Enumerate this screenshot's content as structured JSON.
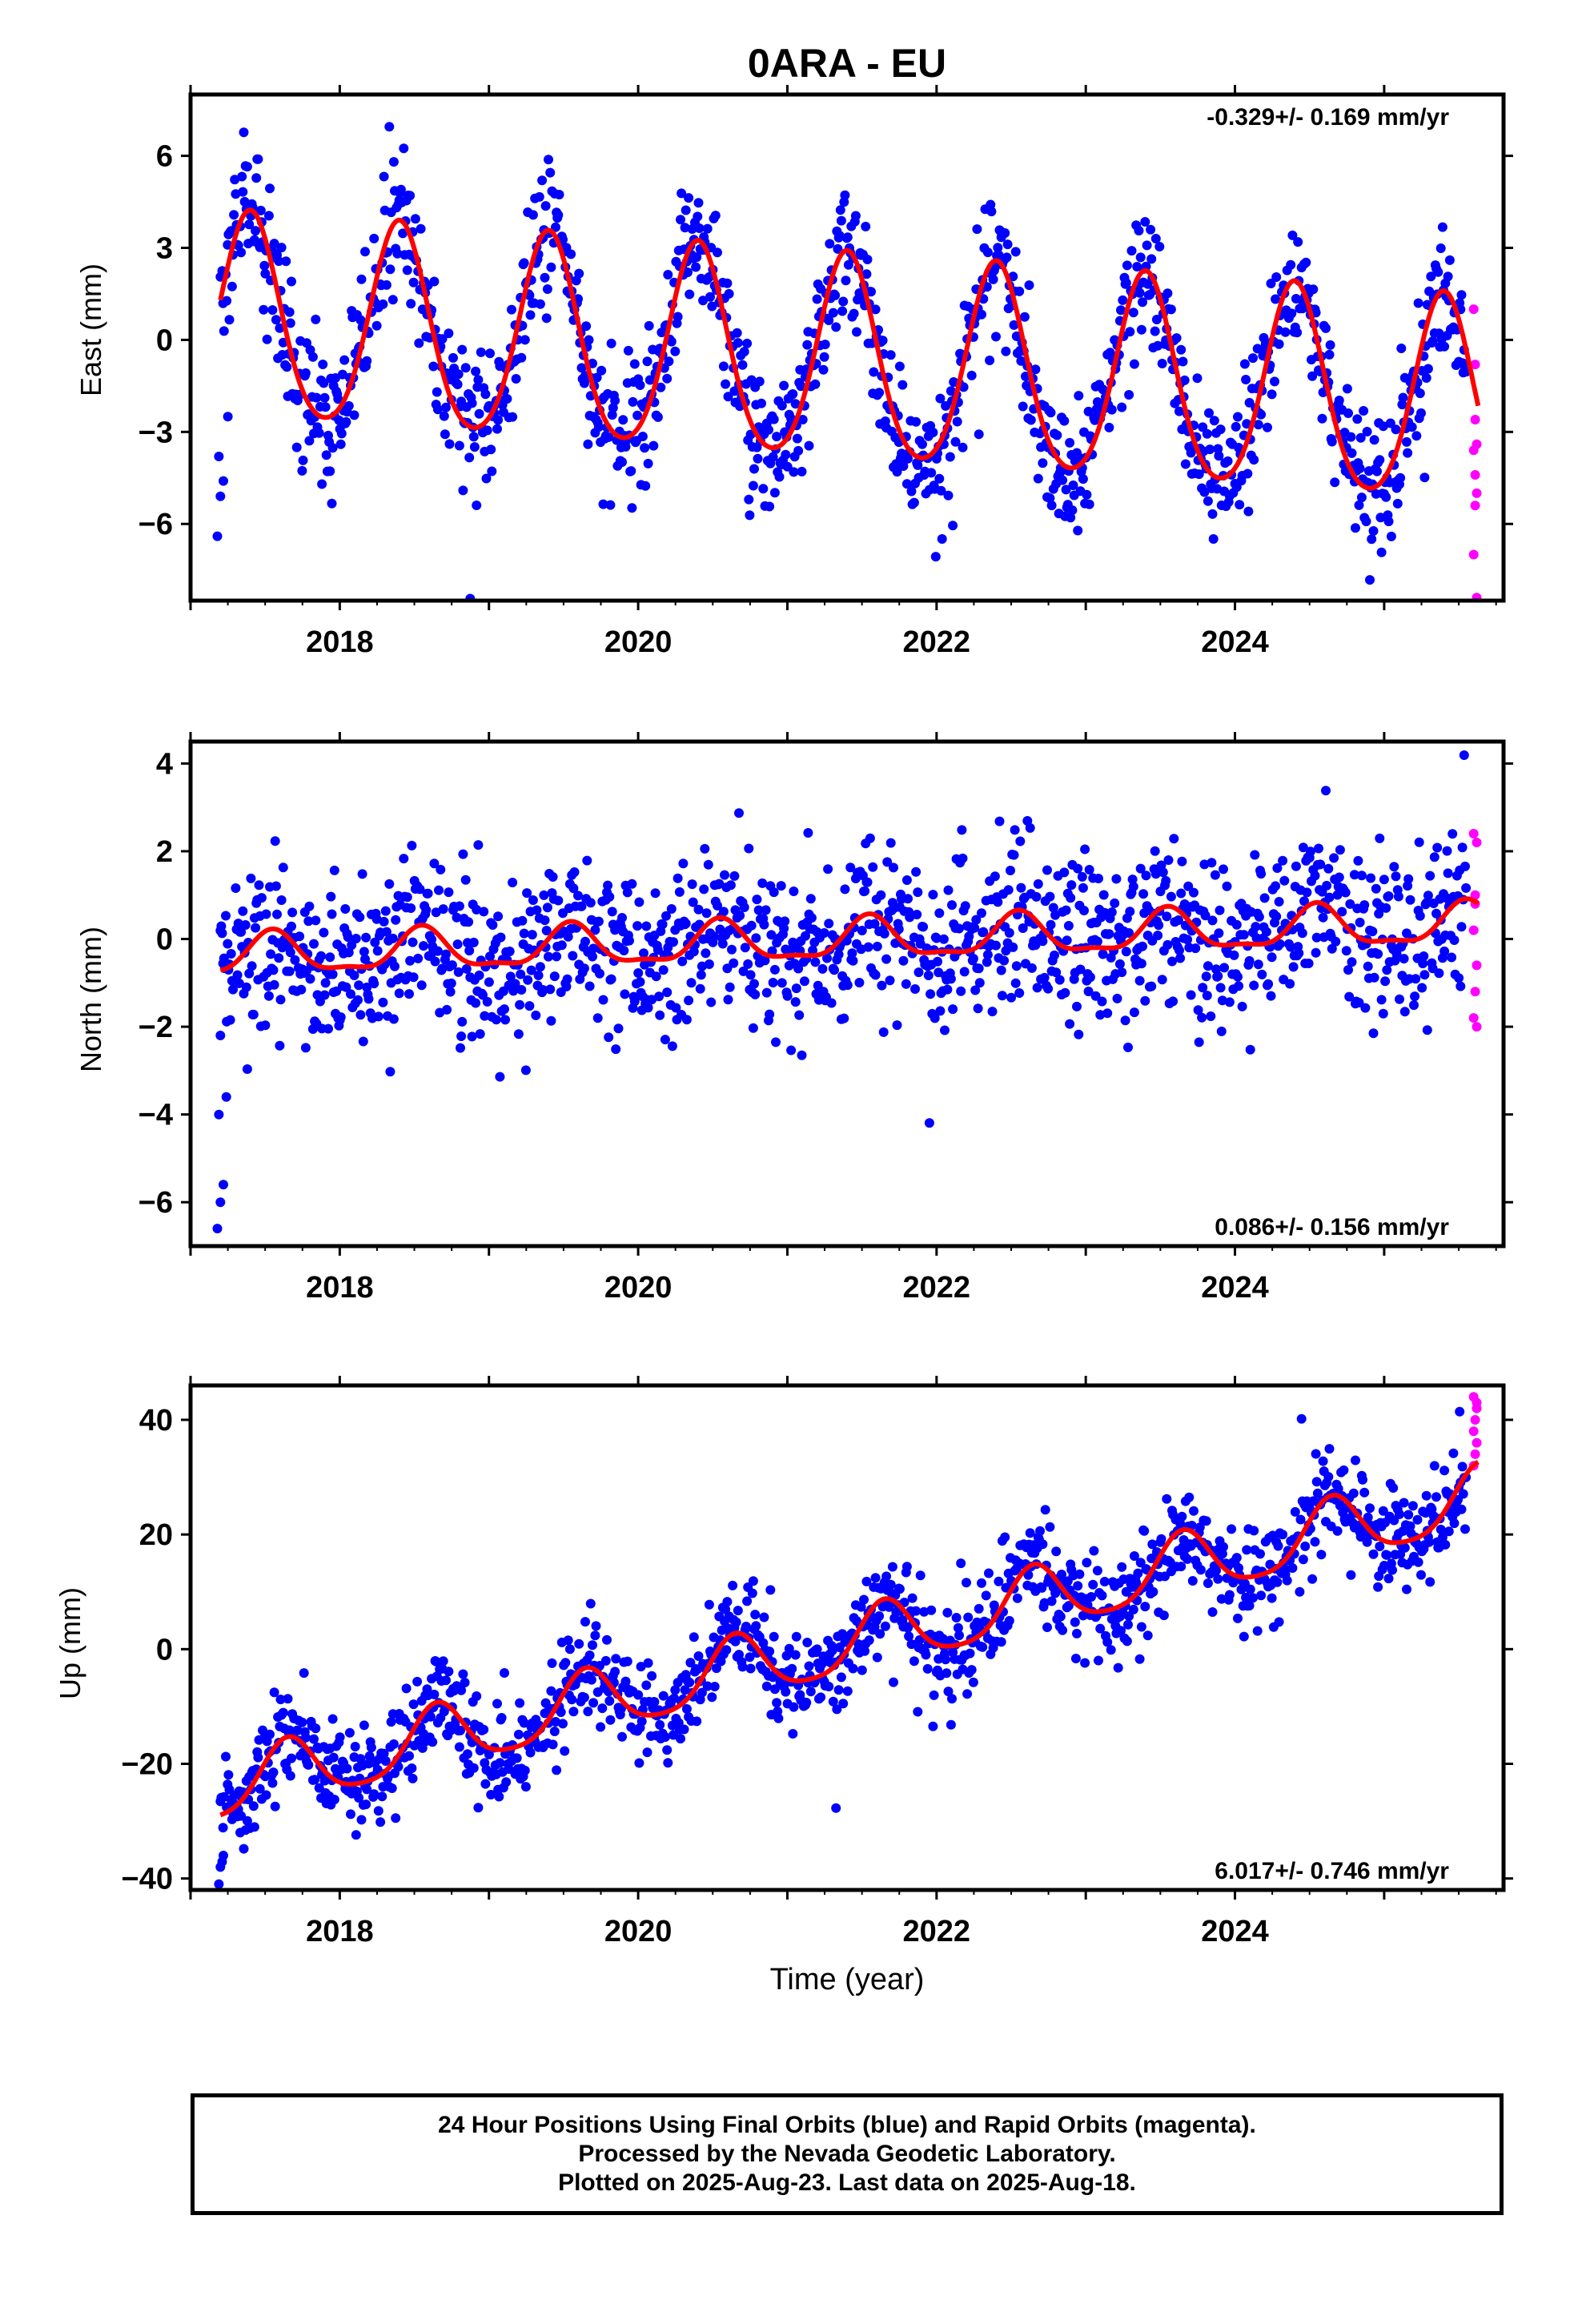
{
  "title": "0ARA - EU",
  "xlabel": "Time (year)",
  "caption": [
    "24 Hour Positions Using Final Orbits (blue) and Rapid Orbits (magenta).",
    "Processed by the Nevada Geodetic Laboratory.",
    "Plotted on 2025-Aug-23. Last data on 2025-Aug-18."
  ],
  "colors": {
    "final": "#0000ff",
    "rapid": "#ff00ff",
    "model": "#ff0000",
    "frame": "#000000"
  },
  "chart_data": [
    {
      "type": "scatter",
      "ylabel": "East (mm)",
      "rate_label": "-0.329+/- 0.169 mm/yr",
      "rate_position": "top-right",
      "xlim": [
        2017.0,
        2025.8
      ],
      "ylim": [
        -8.5,
        8.0
      ],
      "x_ticks": [
        2018,
        2020,
        2022,
        2024
      ],
      "y_ticks": [
        -6,
        -3,
        0,
        3,
        6
      ],
      "data_start": 2017.2,
      "rapid_start": 2025.55,
      "last_data": 2025.63,
      "model": {
        "ref_year": 2017.2,
        "intercept": 0.6,
        "rate": -0.329,
        "annual_amp": 3.3,
        "annual_phase_peak": 2017.4,
        "semiannual_amp": 0.4
      },
      "scatter_sd": 1.1,
      "early_outliers": [
        [
          2017.18,
          -6.4
        ],
        [
          2017.2,
          -5.1
        ],
        [
          2017.22,
          -4.6
        ],
        [
          2017.25,
          -2.5
        ],
        [
          2017.19,
          -3.8
        ]
      ],
      "rapid_points": [
        [
          2025.6,
          1.0
        ],
        [
          2025.61,
          -0.8
        ],
        [
          2025.62,
          -3.4
        ],
        [
          2025.6,
          -3.6
        ],
        [
          2025.61,
          -4.4
        ],
        [
          2025.62,
          -5.0
        ],
        [
          2025.61,
          -5.4
        ],
        [
          2025.6,
          -7.0
        ],
        [
          2025.62,
          -8.4
        ],
        [
          2025.61,
          -2.6
        ]
      ]
    },
    {
      "type": "scatter",
      "ylabel": "North (mm)",
      "rate_label": "0.086+/- 0.156 mm/yr",
      "rate_position": "bottom-right",
      "xlim": [
        2017.0,
        2025.8
      ],
      "ylim": [
        -7.0,
        4.5
      ],
      "x_ticks": [
        2018,
        2020,
        2022,
        2024
      ],
      "y_ticks": [
        -6,
        -4,
        -2,
        0,
        2,
        4
      ],
      "data_start": 2017.2,
      "rapid_start": 2025.55,
      "last_data": 2025.63,
      "model": {
        "ref_year": 2017.2,
        "intercept": -0.4,
        "rate": 0.086,
        "annual_amp": 0.45,
        "annual_phase_peak": 2017.55,
        "semiannual_amp": 0.15
      },
      "scatter_sd": 0.9,
      "early_outliers": [
        [
          2017.18,
          -6.6
        ],
        [
          2017.2,
          -6.0
        ],
        [
          2017.22,
          -5.6
        ],
        [
          2017.19,
          -4.0
        ],
        [
          2017.24,
          -3.6
        ],
        [
          2017.2,
          -2.2
        ]
      ],
      "rapid_points": [
        [
          2025.6,
          2.4
        ],
        [
          2025.62,
          2.2
        ],
        [
          2025.61,
          1.0
        ],
        [
          2025.6,
          0.2
        ],
        [
          2025.62,
          -0.6
        ],
        [
          2025.61,
          -1.2
        ],
        [
          2025.6,
          -1.8
        ],
        [
          2025.62,
          -2.0
        ],
        [
          2025.61,
          0.8
        ]
      ]
    },
    {
      "type": "scatter",
      "ylabel": "Up (mm)",
      "rate_label": "6.017+/- 0.746 mm/yr",
      "rate_position": "bottom-right",
      "xlim": [
        2017.0,
        2025.8
      ],
      "ylim": [
        -42.0,
        46.0
      ],
      "x_ticks": [
        2018,
        2020,
        2022,
        2024
      ],
      "y_ticks": [
        -40,
        -20,
        0,
        20,
        40
      ],
      "data_start": 2017.2,
      "rapid_start": 2025.55,
      "last_data": 2025.63,
      "model": {
        "ref_year": 2017.2,
        "intercept": -24.5,
        "rate": 6.017,
        "annual_amp": 5.5,
        "annual_phase_peak": 2017.65,
        "semiannual_amp": 1.0
      },
      "scatter_sd": 4.2,
      "early_outliers": [
        [
          2017.19,
          -41.0
        ],
        [
          2017.2,
          -38.0
        ],
        [
          2017.22,
          -36.0
        ]
      ],
      "rapid_points": [
        [
          2025.6,
          44.0
        ],
        [
          2025.62,
          42.0
        ],
        [
          2025.61,
          40.0
        ],
        [
          2025.6,
          38.0
        ],
        [
          2025.62,
          36.0
        ],
        [
          2025.61,
          34.0
        ],
        [
          2025.6,
          32.0
        ],
        [
          2025.62,
          43.0
        ]
      ]
    }
  ]
}
